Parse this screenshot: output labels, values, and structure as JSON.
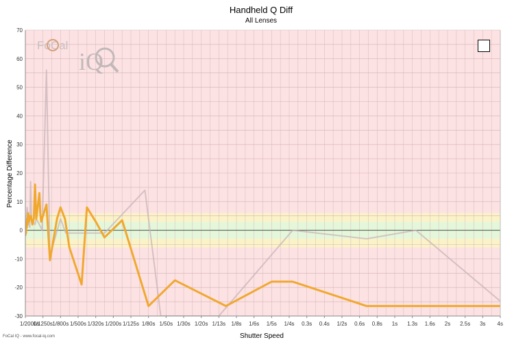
{
  "chart_data": {
    "type": "line",
    "title": "Handheld Q Diff",
    "subtitle": "All Lenses",
    "xlabel": "Shutter Speed",
    "ylabel": "Percentage Difference",
    "ylim": [
      -30,
      70
    ],
    "yticks": [
      70,
      60,
      50,
      40,
      30,
      20,
      10,
      0,
      -10,
      -20,
      -30
    ],
    "bands": [
      {
        "from": -6,
        "to": -3,
        "color": "#fbf3c7"
      },
      {
        "from": -3,
        "to": 3,
        "color": "#e5f7da"
      },
      {
        "from": 3,
        "to": 6,
        "color": "#fbf3c7"
      }
    ],
    "background_color": "#fde2e3",
    "x_categories": [
      "1/2000s",
      "1/1250s",
      "1/800s",
      "1/500s",
      "1/320s",
      "1/200s",
      "1/125s",
      "1/80s",
      "1/50s",
      "1/30s",
      "1/20s",
      "1/13s",
      "1/8s",
      "1/6s",
      "1/5s",
      "1/4s",
      "0.3s",
      "0.4s",
      "1/2s",
      "0.6s",
      "0.8s",
      "1s",
      "1.3s",
      "1.6s",
      "2s",
      "2.5s",
      "3s",
      "4s"
    ],
    "series": [
      {
        "color": "#f0a830",
        "x": [
          0,
          0.02,
          0.04,
          0.06,
          0.08,
          0.1,
          0.12,
          0.15,
          0.2,
          0.24,
          0.28,
          0.32,
          0.4,
          0.48,
          0.55,
          0.62,
          0.8,
          0.85,
          0.9,
          1.2,
          1.4,
          1.8,
          2.0,
          2.25,
          2.5,
          3.2,
          3.5,
          4.0,
          4.5,
          5.5,
          7.0,
          8.5,
          11.4,
          14.0,
          15.2,
          19.4,
          22.2,
          28.0
        ],
        "y": [
          -2,
          1,
          -1,
          3,
          1,
          4,
          2,
          6,
          3,
          5,
          4,
          5,
          2,
          4,
          16,
          4,
          13,
          6,
          3,
          9,
          -10.5,
          4,
          8,
          4,
          -6,
          -19,
          8,
          3,
          -2.5,
          3.5,
          -26.5,
          -17.5,
          -26.5,
          -18,
          -18,
          -26.5,
          -26.5,
          -26.5
        ]
      },
      {
        "color": "#c8b4b8",
        "x": [
          0,
          0.1,
          0.2,
          0.25,
          0.3,
          0.35,
          0.4,
          0.55,
          0.62,
          0.8,
          0.95,
          1.2,
          1.4,
          2.0,
          2.3,
          3.2,
          4.5,
          6.8,
          7.7,
          11.0,
          15.2,
          19.4,
          22.2,
          28.0
        ],
        "y": [
          -1,
          8,
          2,
          1,
          17,
          4,
          3,
          2,
          4,
          2,
          0,
          56,
          -9,
          4,
          -1,
          -1,
          -1,
          14,
          -30,
          -30,
          0,
          -3,
          0,
          -30
        ]
      }
    ],
    "grid": true,
    "legend": "none"
  },
  "logo": {
    "brand": "FoCal",
    "suffix": "iQ"
  },
  "footer_text": "FoCal IQ - www.focal-iq.com",
  "toggle": {
    "checked": false
  }
}
